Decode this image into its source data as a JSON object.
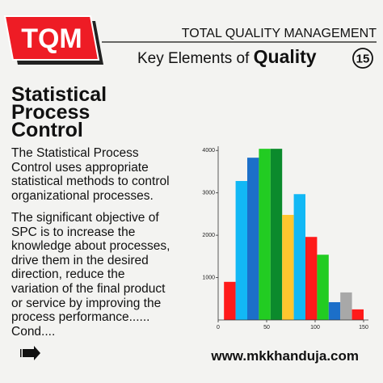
{
  "header": {
    "logo": "TQM",
    "title": "TOTAL QUALITY MANAGEMENT",
    "subtitle": "Key Elements of",
    "subtitle_bold": "Quality",
    "number": 15
  },
  "body": {
    "title_lines": [
      "Statistical",
      "Process",
      "Control"
    ],
    "paragraphs": [
      [
        "The Statistical Process",
        "Control uses appropriate",
        "statistical methods to control",
        "organizational processes."
      ],
      [
        "The significant objective of",
        "SPC is to increase the",
        "knowledge about processes,",
        "drive them in the desired",
        "direction, reduce the",
        "variation of the final product",
        "or service by improving the",
        "process performance......",
        "Cond...."
      ]
    ]
  },
  "footer": {
    "url": "www.mkkhanduja.com"
  },
  "chart_data": {
    "type": "histogram",
    "bins": [
      6,
      18,
      30,
      42,
      54,
      66,
      78,
      90,
      102,
      114,
      126,
      138,
      150
    ],
    "values": [
      900,
      3280,
      3830,
      4040,
      4040,
      2480,
      2970,
      1960,
      1540,
      420,
      650,
      250
    ],
    "colors": [
      "#ff1a1a",
      "#12b8f5",
      "#1c6fc9",
      "#22cc22",
      "#0b8a2c",
      "#ffc62e",
      "#12b8f5",
      "#ff1a1a",
      "#22cc22",
      "#1c6fc9",
      "#a8a8a8",
      "#ff1a1a"
    ],
    "xlim": [
      0,
      155
    ],
    "ylim": [
      0,
      4100
    ],
    "xticks": [
      0,
      50,
      100,
      150
    ],
    "yticks": [
      1000,
      2000,
      3000,
      4000
    ]
  }
}
